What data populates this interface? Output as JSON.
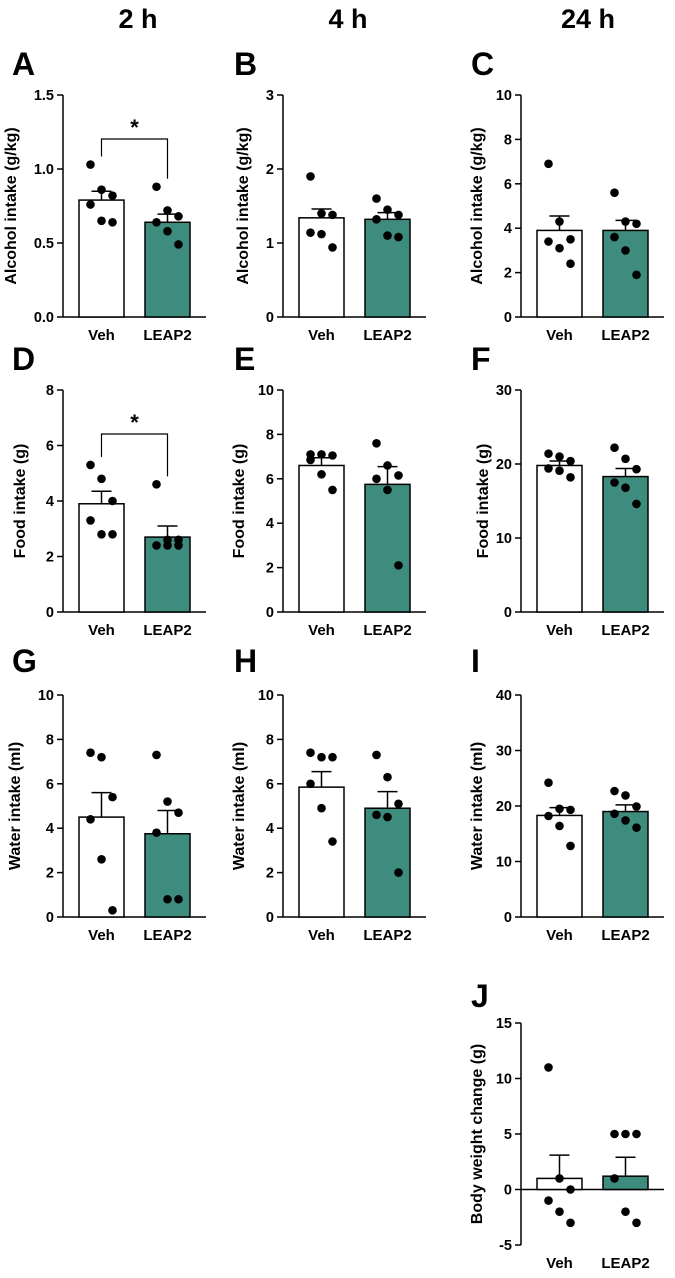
{
  "column_headers": [
    "2 h",
    "4 h",
    "24 h"
  ],
  "colors": {
    "veh_fill": "#ffffff",
    "leap2_fill": "#3e8c7e",
    "ink": "#000000"
  },
  "chart_data": [
    {
      "id": "A",
      "type": "bar",
      "ylabel": "Alcohol intake (g/kg)",
      "categories": [
        "Veh",
        "LEAP2"
      ],
      "ylim": [
        0,
        1.5
      ],
      "yticks": [
        0,
        0.5,
        1.0,
        1.5
      ],
      "ytick_labels": [
        "0.0",
        "0.5",
        "1.0",
        "1.5"
      ],
      "means": [
        0.79,
        0.64
      ],
      "sem": [
        0.06,
        0.055
      ],
      "points": [
        [
          1.03,
          0.86,
          0.82,
          0.76,
          0.65,
          0.64
        ],
        [
          0.88,
          0.72,
          0.68,
          0.64,
          0.58,
          0.49
        ]
      ],
      "significance": "*"
    },
    {
      "id": "B",
      "type": "bar",
      "ylabel": "Alcohol intake (g/kg)",
      "categories": [
        "Veh",
        "LEAP2"
      ],
      "ylim": [
        0,
        3
      ],
      "yticks": [
        0,
        1,
        2,
        3
      ],
      "ytick_labels": [
        "0",
        "1",
        "2",
        "3"
      ],
      "means": [
        1.34,
        1.32
      ],
      "sem": [
        0.12,
        0.09
      ],
      "points": [
        [
          1.9,
          1.4,
          1.38,
          1.14,
          1.12,
          0.94
        ],
        [
          1.6,
          1.45,
          1.38,
          1.32,
          1.1,
          1.08
        ]
      ]
    },
    {
      "id": "C",
      "type": "bar",
      "ylabel": "Alcohol intake (g/kg)",
      "categories": [
        "Veh",
        "LEAP2"
      ],
      "ylim": [
        0,
        10
      ],
      "yticks": [
        0,
        2,
        4,
        6,
        8,
        10
      ],
      "ytick_labels": [
        "0",
        "2",
        "4",
        "6",
        "8",
        "10"
      ],
      "means": [
        3.9,
        3.9
      ],
      "sem": [
        0.65,
        0.45
      ],
      "points": [
        [
          6.9,
          4.3,
          3.5,
          3.4,
          3.1,
          2.4
        ],
        [
          5.6,
          4.3,
          4.2,
          3.6,
          3.0,
          1.9
        ]
      ]
    },
    {
      "id": "D",
      "type": "bar",
      "ylabel": "Food intake (g)",
      "categories": [
        "Veh",
        "LEAP2"
      ],
      "ylim": [
        0,
        8
      ],
      "yticks": [
        0,
        2,
        4,
        6,
        8
      ],
      "ytick_labels": [
        "0",
        "2",
        "4",
        "6",
        "8"
      ],
      "means": [
        3.9,
        2.7
      ],
      "sem": [
        0.45,
        0.4
      ],
      "points": [
        [
          5.3,
          4.8,
          4.0,
          3.3,
          2.8,
          2.8
        ],
        [
          4.6,
          2.6,
          2.6,
          2.4,
          2.4,
          2.4
        ]
      ],
      "significance": "*"
    },
    {
      "id": "E",
      "type": "bar",
      "ylabel": "Food intake (g)",
      "categories": [
        "Veh",
        "LEAP2"
      ],
      "ylim": [
        0,
        10
      ],
      "yticks": [
        0,
        2,
        4,
        6,
        8,
        10
      ],
      "ytick_labels": [
        "0",
        "2",
        "4",
        "6",
        "8",
        "10"
      ],
      "means": [
        6.6,
        5.75
      ],
      "sem": [
        0.35,
        0.8
      ],
      "points": [
        [
          7.1,
          7.1,
          7.05,
          6.85,
          6.2,
          5.5
        ],
        [
          7.6,
          6.6,
          6.15,
          6.0,
          5.5,
          2.1
        ]
      ]
    },
    {
      "id": "F",
      "type": "bar",
      "ylabel": "Food intake (g)",
      "categories": [
        "Veh",
        "LEAP2"
      ],
      "ylim": [
        0,
        30
      ],
      "yticks": [
        0,
        10,
        20,
        30
      ],
      "ytick_labels": [
        "0",
        "10",
        "20",
        "30"
      ],
      "means": [
        19.8,
        18.3
      ],
      "sem": [
        0.6,
        1.1
      ],
      "points": [
        [
          21.4,
          21.0,
          20.4,
          19.4,
          19.1,
          18.2
        ],
        [
          22.2,
          20.7,
          19.3,
          17.5,
          16.8,
          14.6
        ]
      ]
    },
    {
      "id": "G",
      "type": "bar",
      "ylabel": "Water intake (ml)",
      "categories": [
        "Veh",
        "LEAP2"
      ],
      "ylim": [
        0,
        10
      ],
      "yticks": [
        0,
        2,
        4,
        6,
        8,
        10
      ],
      "ytick_labels": [
        "0",
        "2",
        "4",
        "6",
        "8",
        "10"
      ],
      "means": [
        4.5,
        3.75
      ],
      "sem": [
        1.1,
        1.05
      ],
      "points": [
        [
          7.4,
          7.2,
          5.4,
          4.4,
          2.6,
          0.3
        ],
        [
          7.3,
          5.2,
          4.7,
          3.8,
          0.8,
          0.8
        ]
      ]
    },
    {
      "id": "H",
      "type": "bar",
      "ylabel": "Water intake (ml)",
      "categories": [
        "Veh",
        "LEAP2"
      ],
      "ylim": [
        0,
        10
      ],
      "yticks": [
        0,
        2,
        4,
        6,
        8,
        10
      ],
      "ytick_labels": [
        "0",
        "2",
        "4",
        "6",
        "8",
        "10"
      ],
      "means": [
        5.85,
        4.9
      ],
      "sem": [
        0.7,
        0.75
      ],
      "points": [
        [
          7.4,
          7.2,
          7.2,
          6.0,
          4.9,
          3.4
        ],
        [
          7.3,
          6.3,
          5.1,
          4.6,
          4.5,
          2.0
        ]
      ]
    },
    {
      "id": "I",
      "type": "bar",
      "ylabel": "Water intake (ml)",
      "categories": [
        "Veh",
        "LEAP2"
      ],
      "ylim": [
        0,
        40
      ],
      "yticks": [
        0,
        10,
        20,
        30,
        40
      ],
      "ytick_labels": [
        "0",
        "10",
        "20",
        "30",
        "40"
      ],
      "means": [
        18.3,
        19.0
      ],
      "sem": [
        1.4,
        1.2
      ],
      "points": [
        [
          24.2,
          19.5,
          19.3,
          18.2,
          16.4,
          12.8
        ],
        [
          22.7,
          21.9,
          19.9,
          18.6,
          17.4,
          16.1
        ]
      ]
    },
    {
      "id": "J",
      "type": "bar",
      "ylabel": "Body weight change (g)",
      "categories": [
        "Veh",
        "LEAP2"
      ],
      "ylim": [
        -5,
        15
      ],
      "yticks": [
        -5,
        0,
        5,
        10,
        15
      ],
      "ytick_labels": [
        "-5",
        "0",
        "5",
        "10",
        "15"
      ],
      "means": [
        1.0,
        1.2
      ],
      "sem": [
        2.1,
        1.7
      ],
      "points": [
        [
          11,
          1,
          0,
          -1,
          -2,
          -3
        ],
        [
          5,
          5,
          5,
          1,
          -2,
          -3
        ]
      ]
    }
  ]
}
